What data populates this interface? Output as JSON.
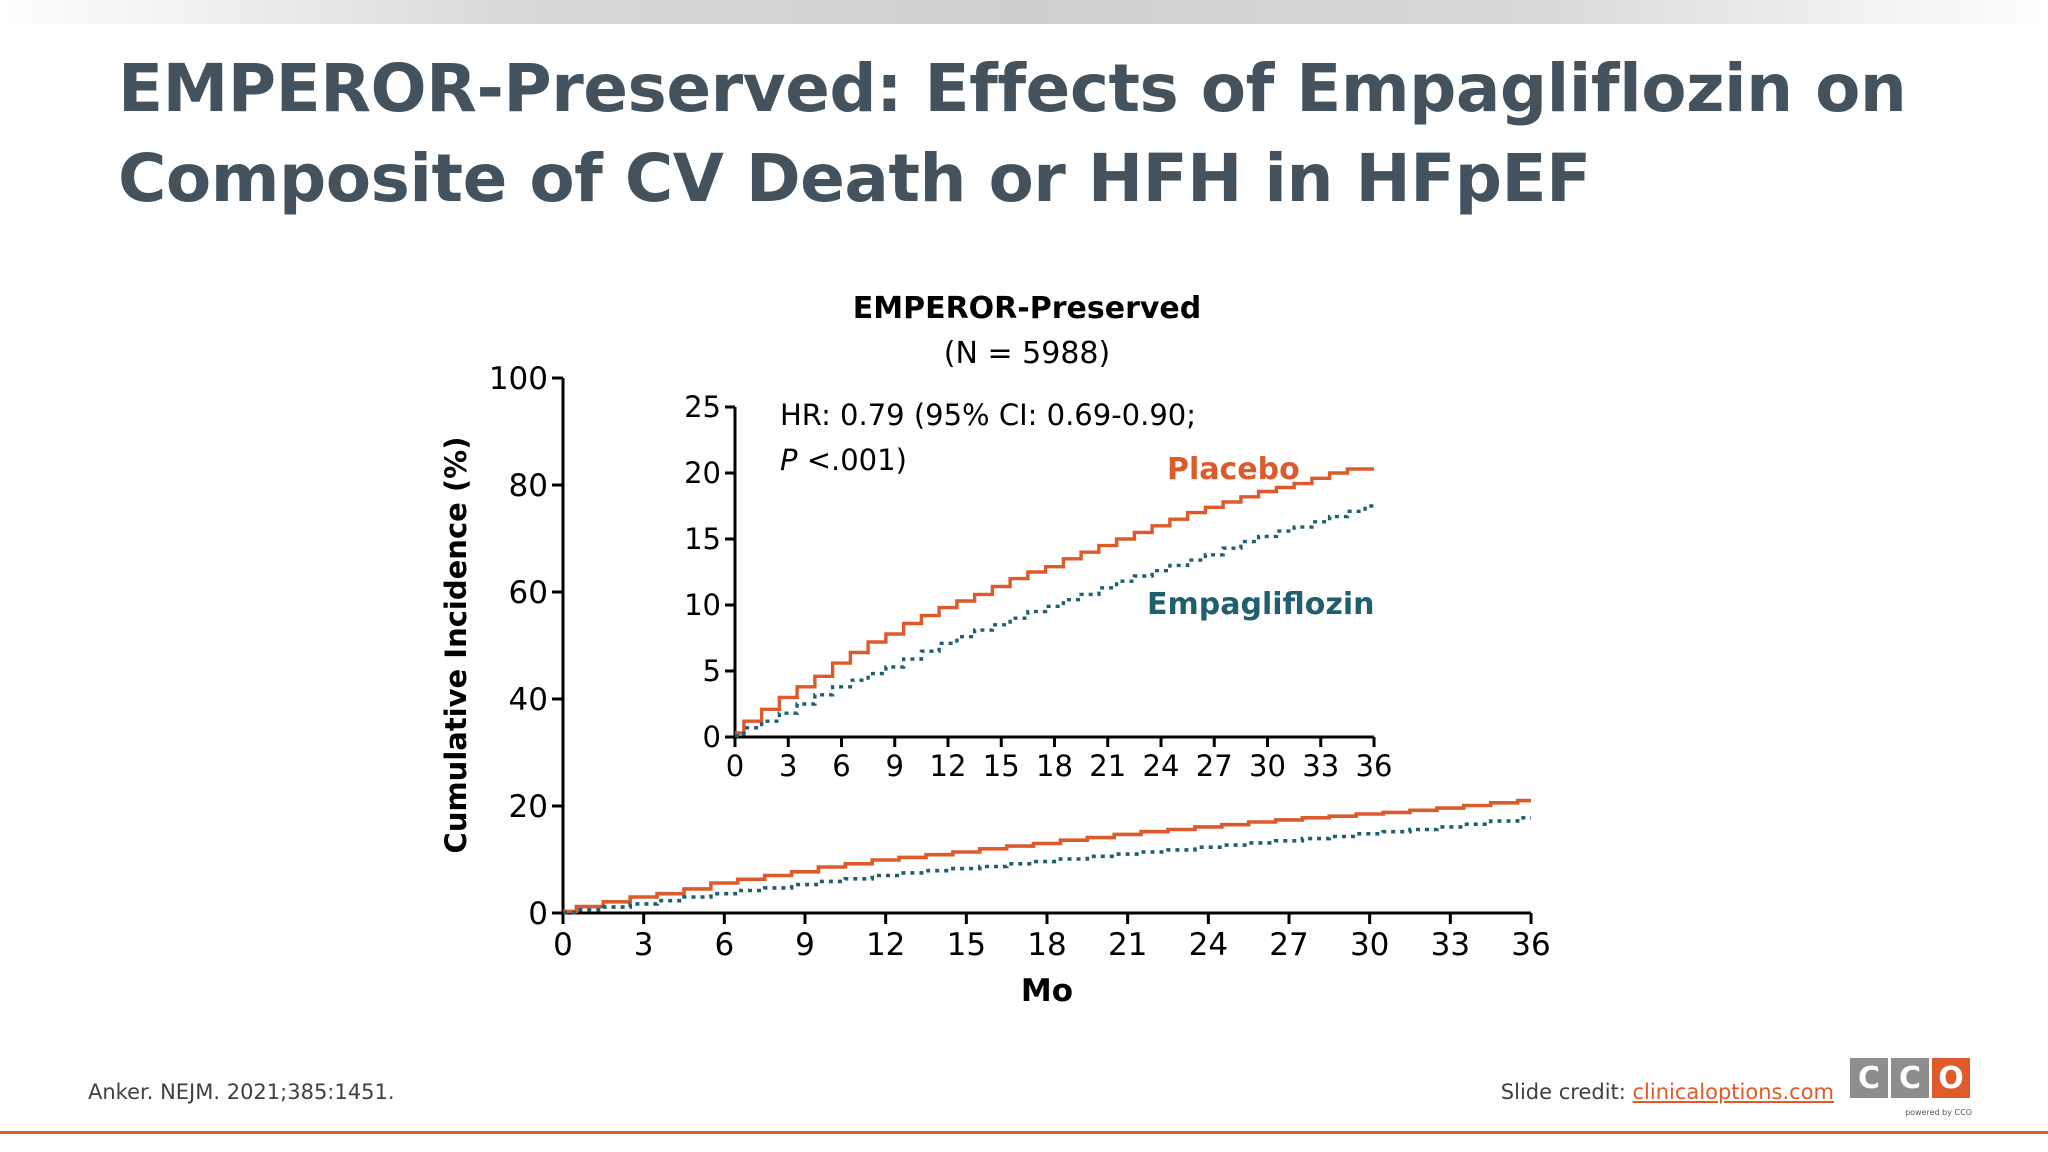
{
  "slide": {
    "title_line1": "EMPEROR-Preserved: Effects of Empagliflozin on",
    "title_line2": "Composite of CV Death or HFH in HFpEF",
    "citation": "Anker. NEJM. 2021;385:1451.",
    "credit_label": "Slide credit: ",
    "credit_link": "clinicaloptions.com",
    "logo_letters": [
      "C",
      "C",
      "O"
    ],
    "logo_tagline": "powered by CCO",
    "accent_color": "#e05a2a",
    "title_color": "#44525e"
  },
  "chart_data": [
    {
      "type": "line",
      "title": "",
      "xlabel": "Mo",
      "ylabel": "Cumulative Incidence (%)",
      "xlim": [
        0,
        36
      ],
      "ylim": [
        0,
        100
      ],
      "xticks": [
        0,
        3,
        6,
        9,
        12,
        15,
        18,
        21,
        24,
        27,
        30,
        33,
        36
      ],
      "yticks": [
        0,
        20,
        40,
        60,
        80,
        100
      ],
      "grid": false,
      "series": [
        {
          "name": "Placebo",
          "color": "#dd5a2b",
          "style": "solid",
          "x": [
            0,
            1,
            2,
            3,
            4,
            5,
            6,
            7,
            8,
            9,
            10,
            11,
            12,
            13,
            14,
            15,
            16,
            17,
            18,
            19,
            20,
            21,
            22,
            23,
            24,
            25,
            26,
            27,
            28,
            29,
            30,
            31,
            32,
            33,
            34,
            35,
            36
          ],
          "y": [
            0.3,
            1.2,
            2.1,
            3.0,
            3.6,
            4.5,
            5.6,
            6.3,
            7.0,
            7.7,
            8.6,
            9.2,
            9.9,
            10.4,
            10.9,
            11.4,
            12.0,
            12.5,
            13.0,
            13.6,
            14.1,
            14.7,
            15.2,
            15.6,
            16.1,
            16.5,
            17.0,
            17.4,
            17.8,
            18.1,
            18.5,
            18.8,
            19.2,
            19.6,
            20.1,
            20.6,
            21.0
          ]
        },
        {
          "name": "Empagliflozin",
          "color": "#1f5f6e",
          "style": "dotted",
          "x": [
            0,
            1,
            2,
            3,
            4,
            5,
            6,
            7,
            8,
            9,
            10,
            11,
            12,
            13,
            14,
            15,
            16,
            17,
            18,
            19,
            20,
            21,
            22,
            23,
            24,
            25,
            26,
            27,
            28,
            29,
            30,
            31,
            32,
            33,
            34,
            35,
            36
          ],
          "y": [
            0.1,
            0.6,
            1.1,
            1.7,
            2.3,
            3.0,
            3.6,
            4.2,
            4.7,
            5.3,
            5.9,
            6.4,
            7.0,
            7.5,
            7.9,
            8.3,
            8.7,
            9.2,
            9.6,
            10.1,
            10.6,
            11.0,
            11.4,
            11.8,
            12.3,
            12.7,
            13.1,
            13.5,
            13.9,
            14.3,
            14.8,
            15.2,
            15.6,
            16.1,
            16.6,
            17.2,
            17.8
          ]
        }
      ]
    },
    {
      "type": "line",
      "title": "EMPEROR-Preserved",
      "subtitle": "(N = 5988)",
      "xlabel": "",
      "ylabel": "",
      "xlim": [
        0,
        36
      ],
      "ylim": [
        0,
        25
      ],
      "xticks": [
        0,
        3,
        6,
        9,
        12,
        15,
        18,
        21,
        24,
        27,
        30,
        33,
        36
      ],
      "yticks": [
        0,
        5,
        10,
        15,
        20,
        25
      ],
      "grid": false,
      "annotations": {
        "hr_line1": "HR: 0.79 (95% CI: 0.69-0.90;",
        "hr_p_italic": "P",
        "hr_line2_rest": " <.001)"
      },
      "series": [
        {
          "name": "Placebo",
          "label": "Placebo",
          "color": "#dd5a2b",
          "style": "solid",
          "x": [
            0,
            1,
            2,
            3,
            4,
            5,
            6,
            7,
            8,
            9,
            10,
            11,
            12,
            13,
            14,
            15,
            16,
            17,
            18,
            19,
            20,
            21,
            22,
            23,
            24,
            25,
            26,
            27,
            28,
            29,
            30,
            31,
            32,
            33,
            34,
            35,
            36
          ],
          "y": [
            0.3,
            1.2,
            2.1,
            3.0,
            3.8,
            4.6,
            5.6,
            6.4,
            7.2,
            7.8,
            8.6,
            9.2,
            9.8,
            10.3,
            10.8,
            11.4,
            12.0,
            12.5,
            12.9,
            13.5,
            14.0,
            14.5,
            15.0,
            15.5,
            16.0,
            16.5,
            17.0,
            17.4,
            17.8,
            18.2,
            18.6,
            18.9,
            19.2,
            19.6,
            20.0,
            20.3,
            20.3
          ]
        },
        {
          "name": "Empagliflozin",
          "label": "Empagliflozin",
          "color": "#1f5f6e",
          "style": "dotted",
          "x": [
            0,
            1,
            2,
            3,
            4,
            5,
            6,
            7,
            8,
            9,
            10,
            11,
            12,
            13,
            14,
            15,
            16,
            17,
            18,
            19,
            20,
            21,
            22,
            23,
            24,
            25,
            26,
            27,
            28,
            29,
            30,
            31,
            32,
            33,
            34,
            35,
            36
          ],
          "y": [
            0.1,
            0.7,
            1.2,
            1.8,
            2.5,
            3.2,
            3.8,
            4.3,
            4.8,
            5.3,
            5.9,
            6.5,
            7.1,
            7.6,
            8.1,
            8.5,
            9.0,
            9.5,
            9.9,
            10.4,
            10.8,
            11.3,
            11.8,
            12.2,
            12.6,
            13.0,
            13.4,
            13.8,
            14.3,
            14.8,
            15.2,
            15.6,
            15.9,
            16.3,
            16.7,
            17.1,
            17.5
          ]
        }
      ]
    }
  ]
}
